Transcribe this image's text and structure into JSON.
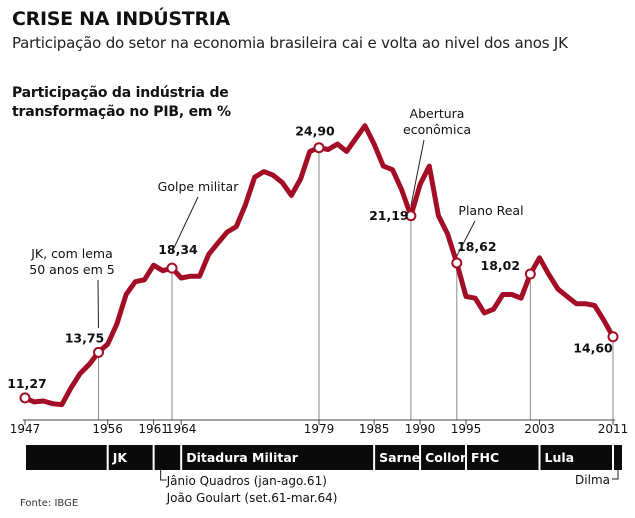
{
  "header": {
    "title": "CRISE NA INDÚSTRIA",
    "subtitle": "Participação do setor na economia brasileira cai e volta ao nivel dos anos JK"
  },
  "chart_heading": "Participação da indústria de transformação no PIB, em %",
  "source": "Fonte: IBGE",
  "colors": {
    "line": "#a30d26",
    "bar": "#0a0a0a",
    "guide": "#8a8a8a",
    "text": "#111111"
  },
  "chart_data": {
    "type": "line",
    "title": "Participação da indústria de transformação no PIB, em %",
    "xlabel": "",
    "ylabel": "",
    "xlim": [
      1947,
      2011
    ],
    "ylim": [
      10.5,
      26.3
    ],
    "grid": false,
    "legend": "none",
    "series": [
      {
        "x": [
          1947,
          1948,
          1949,
          1950,
          1951,
          1952,
          1953,
          1954,
          1955,
          1956,
          1957,
          1958,
          1959,
          1960,
          1961,
          1962,
          1963,
          1964,
          1965,
          1966,
          1967,
          1968,
          1969,
          1970,
          1971,
          1972,
          1973,
          1974,
          1975,
          1976,
          1977,
          1978,
          1979,
          1980,
          1981,
          1982,
          1983,
          1984,
          1985,
          1986,
          1987,
          1988,
          1989,
          1990,
          1991,
          1992,
          1993,
          1994,
          1995,
          1996,
          1997,
          1998,
          1999,
          2000,
          2001,
          2002,
          2003,
          2004,
          2005,
          2006,
          2007,
          2008,
          2009,
          2010,
          2011
        ],
        "values": [
          11.27,
          11.05,
          11.1,
          10.95,
          10.9,
          11.8,
          12.6,
          13.1,
          13.75,
          14.2,
          15.3,
          16.9,
          17.6,
          17.7,
          18.5,
          18.2,
          18.34,
          17.8,
          17.9,
          17.9,
          19.1,
          19.7,
          20.3,
          20.6,
          21.8,
          23.3,
          23.6,
          23.4,
          23.0,
          22.3,
          23.2,
          24.7,
          24.9,
          24.8,
          25.1,
          24.7,
          25.4,
          26.1,
          25.1,
          23.9,
          23.7,
          22.6,
          21.19,
          22.9,
          23.9,
          21.2,
          20.2,
          18.62,
          16.8,
          16.7,
          15.9,
          16.1,
          16.9,
          16.9,
          16.7,
          18.02,
          18.9,
          18.0,
          17.2,
          16.8,
          16.4,
          16.4,
          16.3,
          15.5,
          14.6
        ]
      }
    ],
    "point_labels": [
      {
        "x": 1947,
        "text": "11,27"
      },
      {
        "x": 1955,
        "text": "13,75"
      },
      {
        "x": 1963,
        "text": "18,34"
      },
      {
        "x": 1979,
        "text": "24,90"
      },
      {
        "x": 1989,
        "text": "21,19"
      },
      {
        "x": 1994,
        "text": "18,62"
      },
      {
        "x": 2002,
        "text": "18,02"
      },
      {
        "x": 2011,
        "text": "14,60"
      }
    ],
    "x_ticks": [
      {
        "year": 1947,
        "label": "1947"
      },
      {
        "year": 1956,
        "label": "1956"
      },
      {
        "year": 1961,
        "label": "1961"
      },
      {
        "year": 1964,
        "label": "1964"
      },
      {
        "year": 1979,
        "label": "1979"
      },
      {
        "year": 1985,
        "label": "1985"
      },
      {
        "year": 1990,
        "label": "1990"
      },
      {
        "year": 1995,
        "label": "1995"
      },
      {
        "year": 2003,
        "label": "2003"
      },
      {
        "year": 2011,
        "label": "2011"
      }
    ],
    "annotations": [
      {
        "x": 1955,
        "text": [
          "JK, com lema",
          "50 anos em 5"
        ]
      },
      {
        "x": 1963,
        "text": [
          "Golpe militar"
        ]
      },
      {
        "x": 1989,
        "text": [
          "Abertura",
          "econômica"
        ]
      },
      {
        "x": 1994,
        "text": [
          "Plano Real"
        ]
      }
    ],
    "eras": [
      {
        "start": 1947,
        "end": 1956,
        "label": ""
      },
      {
        "start": 1956,
        "end": 1961,
        "label": "JK"
      },
      {
        "start": 1961,
        "end": 1964,
        "label": ""
      },
      {
        "start": 1964,
        "end": 1985,
        "label": "Ditadura Militar"
      },
      {
        "start": 1985,
        "end": 1990,
        "label": "Sarney"
      },
      {
        "start": 1990,
        "end": 1995,
        "label": "Collor"
      },
      {
        "start": 1995,
        "end": 2003,
        "label": "FHC"
      },
      {
        "start": 2003,
        "end": 2011,
        "label": "Lula"
      },
      {
        "start": 2011,
        "end": 2012,
        "label": ""
      }
    ],
    "era_notes": [
      {
        "lines": [
          "Jânio Quadros (jan-ago.61)",
          "João Goulart (set.61-mar.64)"
        ],
        "anchor_year": 1961
      },
      {
        "lines": [
          "Dilma"
        ],
        "anchor_year": 2011
      }
    ]
  }
}
